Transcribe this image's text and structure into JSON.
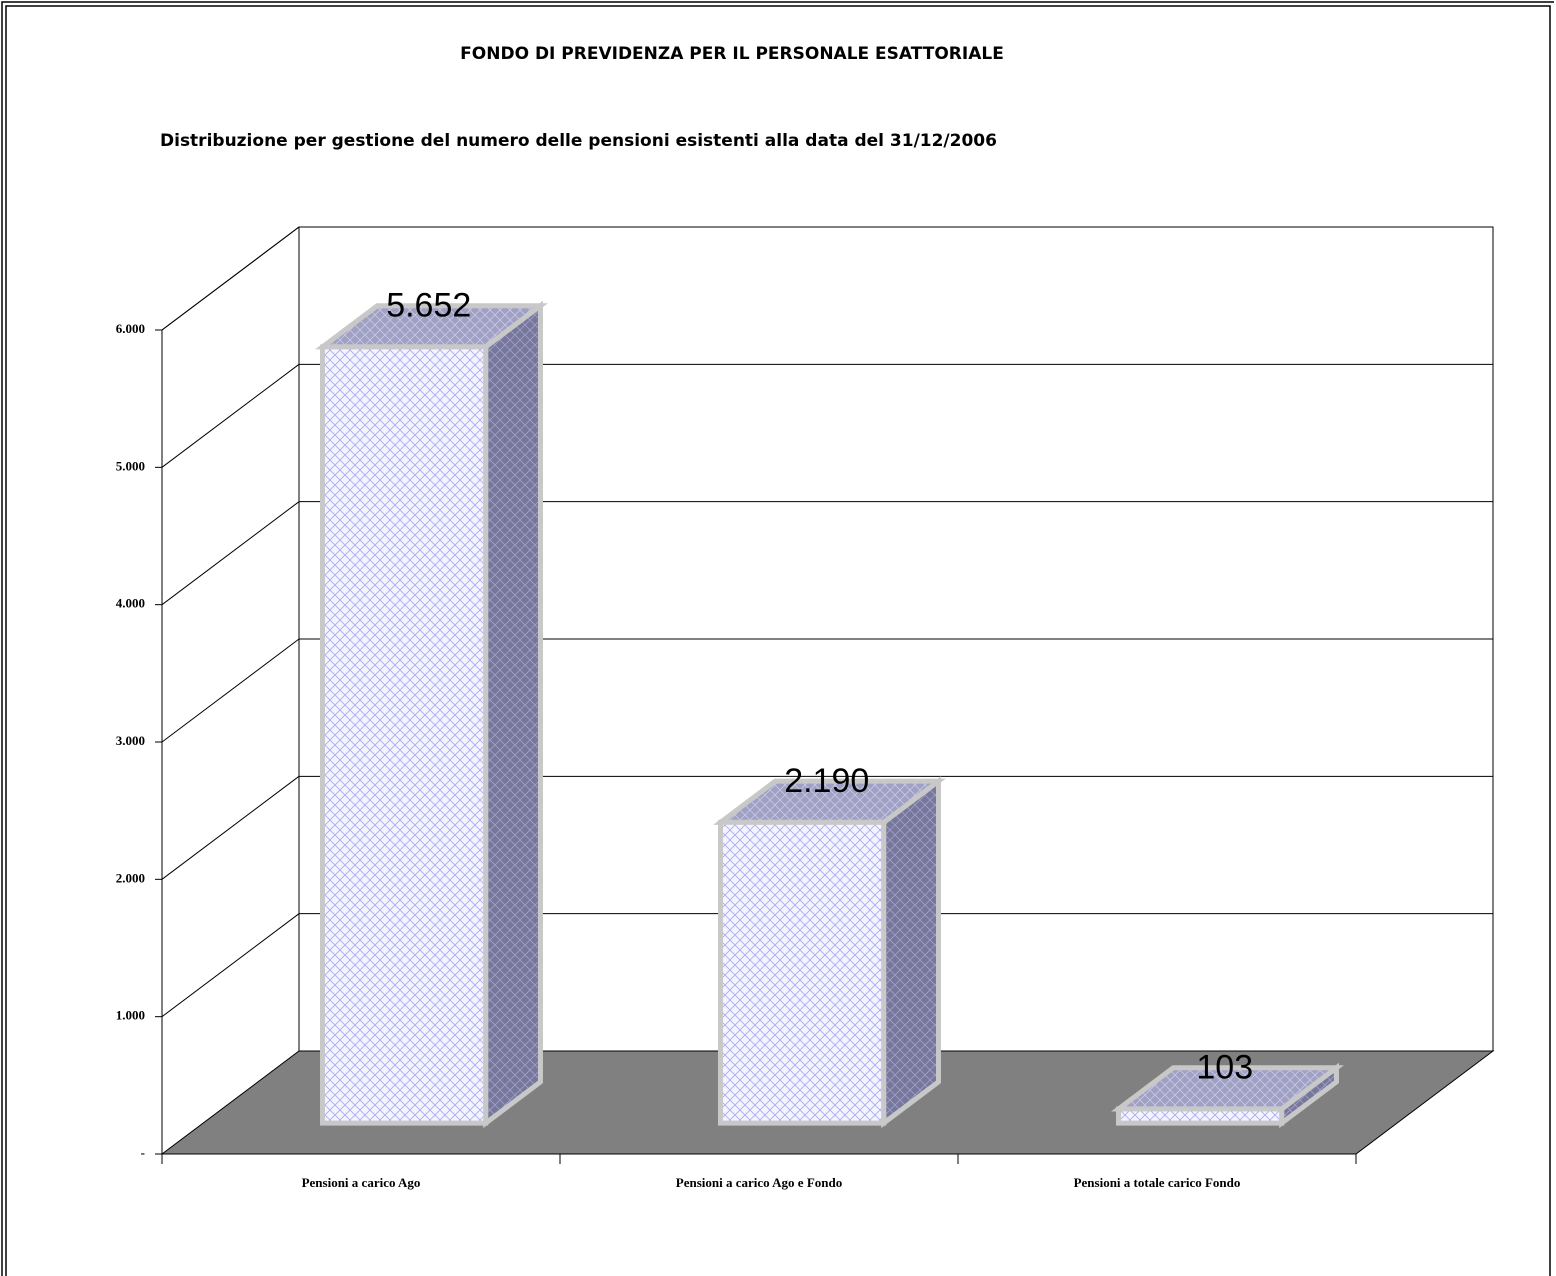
{
  "chart_data": {
    "type": "bar3d",
    "title": "FONDO DI PREVIDENZA PER IL PERSONALE ESATTORIALE",
    "subtitle": "Distribuzione per gestione del numero delle pensioni esistenti alla data del 31/12/2006",
    "categories": [
      "Pensioni a carico Ago",
      "Pensioni a carico Ago e Fondo",
      "Pensioni a totale carico Fondo"
    ],
    "values": [
      5652,
      2190,
      103
    ],
    "value_labels": [
      "5.652",
      "2.190",
      "103"
    ],
    "ylim": [
      0,
      6000
    ],
    "yticks": [
      {
        "value": 0,
        "label": "-"
      },
      {
        "value": 1000,
        "label": "1.000"
      },
      {
        "value": 2000,
        "label": "2.000"
      },
      {
        "value": 3000,
        "label": "3.000"
      },
      {
        "value": 4000,
        "label": "4.000"
      },
      {
        "value": 5000,
        "label": "5.000"
      },
      {
        "value": 6000,
        "label": "6.000"
      }
    ],
    "grid": true,
    "color": "#9999ff"
  }
}
